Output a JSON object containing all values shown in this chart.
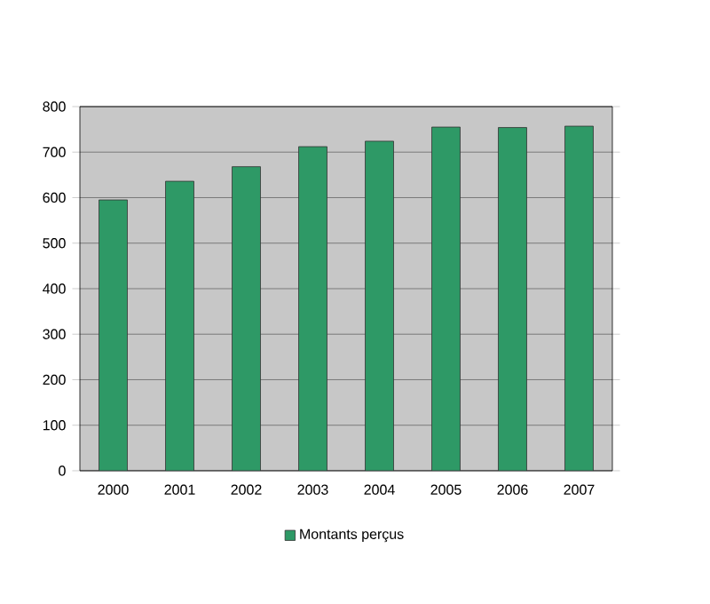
{
  "chart_data": {
    "type": "bar",
    "categories": [
      "2000",
      "2001",
      "2002",
      "2003",
      "2004",
      "2005",
      "2006",
      "2007"
    ],
    "series": [
      {
        "name": "Montants perçus",
        "color": "#2e9966",
        "values": [
          595,
          636,
          668,
          712,
          724,
          755,
          754,
          757
        ]
      }
    ],
    "ylim": [
      0,
      800
    ],
    "yticks": [
      0,
      100,
      200,
      300,
      400,
      500,
      600,
      700,
      800
    ],
    "grid": "y",
    "legend": "bottom"
  }
}
